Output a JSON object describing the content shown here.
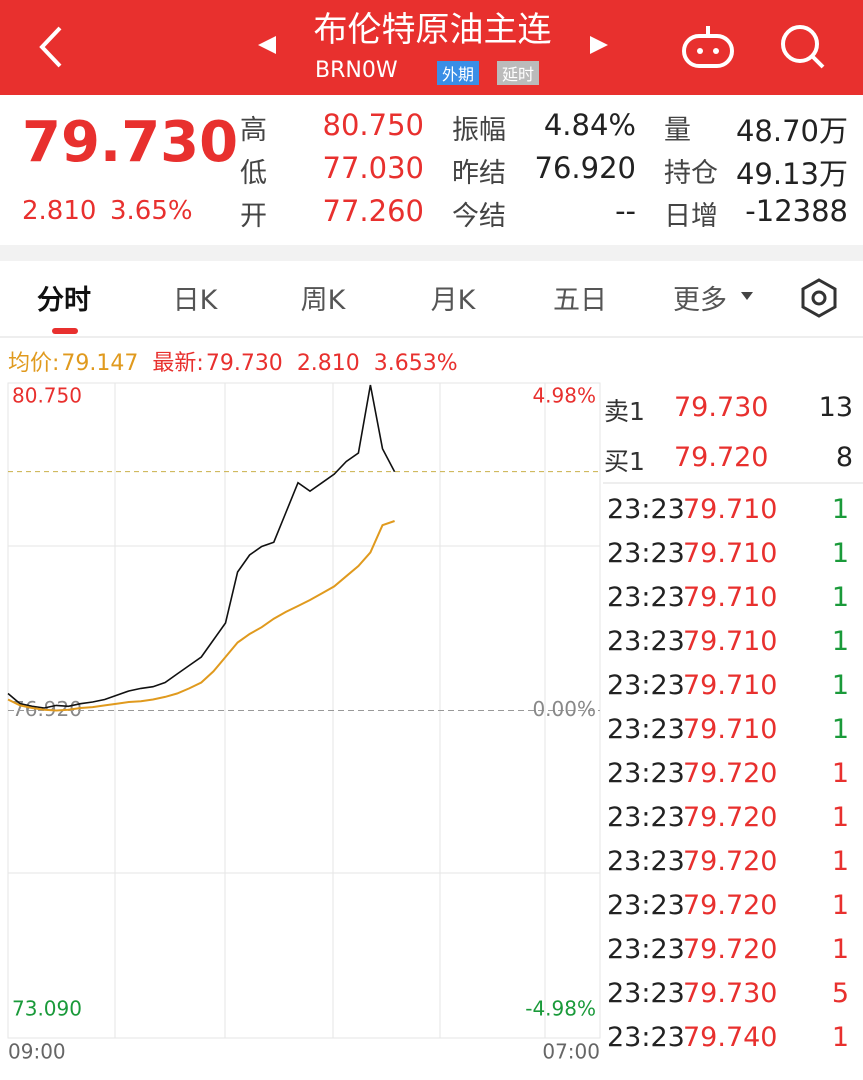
{
  "header": {
    "title": "布伦特原油主连",
    "code": "BRN0W",
    "tags": [
      "外期",
      "延时"
    ]
  },
  "quote": {
    "price": "79.730",
    "change": "2.810",
    "pct": "3.65%",
    "stats": [
      [
        {
          "label": "高",
          "value": "80.750",
          "color": "#e8302e"
        },
        {
          "label": "振幅",
          "value": "4.84%",
          "color": "#222"
        },
        {
          "label": "量",
          "value": "48.70万",
          "color": "#222"
        }
      ],
      [
        {
          "label": "低",
          "value": "77.030",
          "color": "#e8302e"
        },
        {
          "label": "昨结",
          "value": "76.920",
          "color": "#222"
        },
        {
          "label": "持仓",
          "value": "49.13万",
          "color": "#222"
        }
      ],
      [
        {
          "label": "开",
          "value": "77.260",
          "color": "#e8302e"
        },
        {
          "label": "今结",
          "value": "--",
          "color": "#222"
        },
        {
          "label": "日增",
          "value": "-12388",
          "color": "#222"
        }
      ]
    ]
  },
  "tabs": [
    "分时",
    "日K",
    "周K",
    "月K",
    "五日",
    "更多"
  ],
  "chart_data": {
    "type": "line",
    "legend": [
      {
        "label": "均价:",
        "value": "79.147",
        "color": "#e09a1e"
      },
      {
        "label": "最新:",
        "value": "79.730",
        "color": "#e8302e"
      },
      {
        "label": "",
        "value": "2.810",
        "color": "#e8302e"
      },
      {
        "label": "",
        "value": "3.653%",
        "color": "#e8302e"
      }
    ],
    "categories": [
      "09:00",
      null,
      null,
      null,
      null,
      null,
      null,
      null,
      null,
      null,
      null,
      null,
      null,
      null,
      null,
      null,
      null,
      null,
      null,
      null,
      null,
      null,
      null,
      null,
      null,
      null,
      null,
      null,
      null,
      null,
      null,
      null,
      null,
      null,
      null,
      null,
      null,
      null,
      null,
      null,
      null,
      null,
      null,
      null,
      null,
      null,
      null,
      null,
      null,
      "07:00"
    ],
    "series": [
      {
        "color": "#111111",
        "values": [
          77.12,
          77.0,
          76.97,
          76.95,
          76.98,
          76.97,
          77.0,
          77.02,
          77.05,
          77.1,
          77.15,
          77.18,
          77.2,
          77.25,
          77.35,
          77.45,
          77.55,
          77.75,
          77.95,
          78.55,
          78.75,
          78.85,
          78.9,
          79.25,
          79.6,
          79.5,
          79.6,
          79.7,
          79.85,
          79.95,
          80.75,
          80.0,
          79.73,
          null,
          null,
          null,
          null,
          null,
          null,
          null,
          null,
          null,
          null,
          null,
          null,
          null,
          null,
          null,
          null,
          null
        ]
      },
      {
        "color": "#e09a1e",
        "values": [
          77.05,
          76.98,
          76.95,
          76.93,
          76.92,
          76.93,
          76.95,
          76.96,
          76.98,
          77.0,
          77.02,
          77.03,
          77.05,
          77.08,
          77.12,
          77.18,
          77.25,
          77.38,
          77.55,
          77.72,
          77.82,
          77.9,
          78.0,
          78.08,
          78.15,
          78.22,
          78.3,
          78.38,
          78.5,
          78.62,
          78.78,
          79.1,
          79.15,
          null,
          null,
          null,
          null,
          null,
          null,
          null,
          null,
          null,
          null,
          null,
          null,
          null,
          null,
          null,
          null,
          null
        ]
      }
    ],
    "latest": {
      "value": 79.73
    },
    "ylim": [
      73.09,
      80.75
    ],
    "yticks": [
      {
        "value": 80.75,
        "label": "80.750"
      },
      {
        "value": 76.92,
        "label": "76.920"
      },
      {
        "value": 73.09,
        "label": "73.090"
      }
    ],
    "y2lim": [
      -4.98,
      4.98
    ],
    "y2ticks": [
      {
        "value": 4.98,
        "label": "4.98%"
      },
      {
        "value": 0,
        "label": "0.00%"
      },
      {
        "value": -4.98,
        "label": "-4.98%"
      }
    ]
  },
  "orderbook": [
    {
      "label": "卖1",
      "price": "79.730",
      "volume": "13"
    },
    {
      "label": "买1",
      "price": "79.720",
      "volume": "8"
    }
  ],
  "trades": [
    [
      "23:23",
      "79.710",
      "1",
      "#1a9a3a"
    ],
    [
      "23:23",
      "79.710",
      "1",
      "#1a9a3a"
    ],
    [
      "23:23",
      "79.710",
      "1",
      "#1a9a3a"
    ],
    [
      "23:23",
      "79.710",
      "1",
      "#1a9a3a"
    ],
    [
      "23:23",
      "79.710",
      "1",
      "#1a9a3a"
    ],
    [
      "23:23",
      "79.710",
      "1",
      "#1a9a3a"
    ],
    [
      "23:23",
      "79.720",
      "1",
      "#e8302e"
    ],
    [
      "23:23",
      "79.720",
      "1",
      "#e8302e"
    ],
    [
      "23:23",
      "79.720",
      "1",
      "#e8302e"
    ],
    [
      "23:23",
      "79.720",
      "1",
      "#e8302e"
    ],
    [
      "23:23",
      "79.720",
      "1",
      "#e8302e"
    ],
    [
      "23:23",
      "79.730",
      "5",
      "#e8302e"
    ],
    [
      "23:23",
      "79.740",
      "1",
      "#e8302e"
    ]
  ]
}
